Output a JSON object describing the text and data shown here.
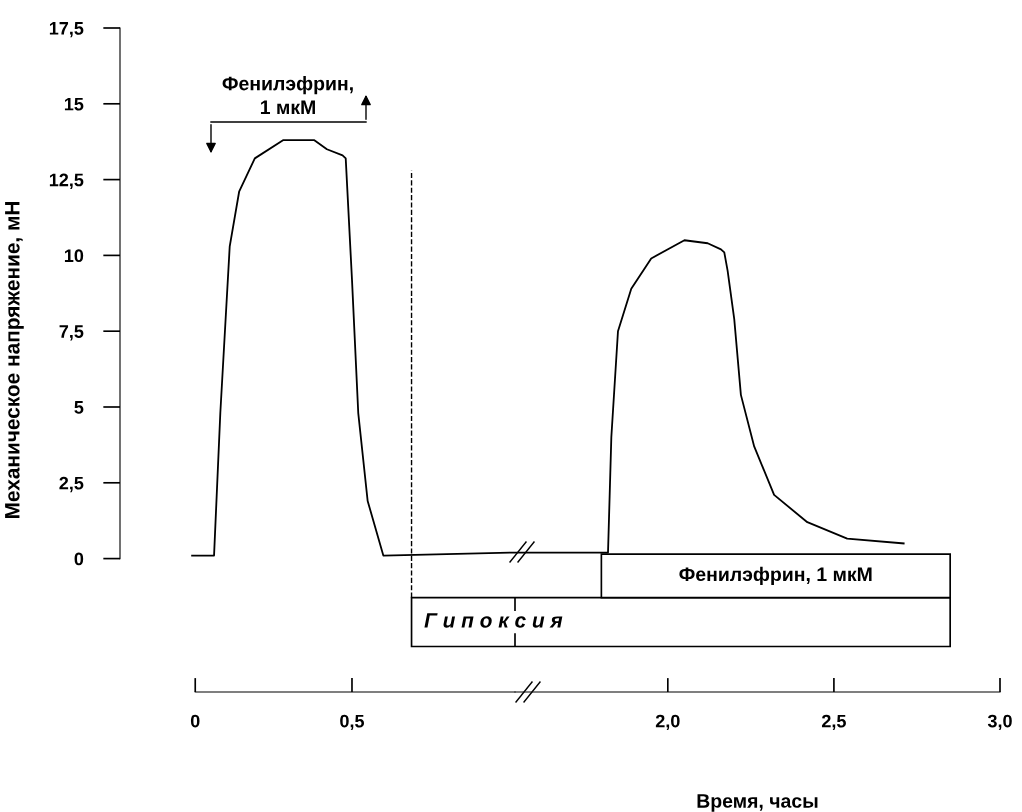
{
  "chart_data": [
    {
      "type": "line",
      "ylabel": "Механическое напряжение, мН",
      "xlim": [
        -0.24,
        1.02
      ],
      "xticks": [
        0,
        {
          "value": 0.5,
          "label": "0,5"
        }
      ],
      "ylim": [
        -4.4,
        17.5
      ],
      "yticks": [
        0,
        {
          "value": 2.5,
          "label": "2,5"
        },
        5,
        {
          "value": 7.5,
          "label": "7,5"
        },
        10,
        {
          "value": 12.5,
          "label": "12,5"
        },
        15,
        {
          "value": 17.5,
          "label": "17,5"
        }
      ],
      "series": [
        {
          "color": "#000000",
          "x": [
            -0.01,
            0.06,
            0.08,
            0.11,
            0.14,
            0.19,
            0.28,
            0.38,
            0.42,
            0.47,
            0.48,
            0.5,
            0.52,
            0.55,
            0.6,
            1.02
          ],
          "values": [
            0.1,
            0.1,
            4.8,
            10.3,
            12.1,
            13.2,
            13.8,
            13.8,
            13.5,
            13.3,
            13.2,
            9.2,
            4.8,
            1.9,
            0.1,
            0.2
          ]
        }
      ],
      "annotations": [
        "Фенилэфрин,\n1 мкМ"
      ],
      "ref_lines": [
        {
          "axis": "x",
          "value": 0.69,
          "line_style": "dashed",
          "color": "#000000"
        }
      ],
      "bands": [
        {
          "axis": "x",
          "from": 0.69,
          "to": 1.02,
          "label": "Г и п о к с и я",
          "color": "#ffffff"
        }
      ],
      "grid": false,
      "legend": false,
      "marker": "none",
      "line_style": "solid"
    },
    {
      "type": "line",
      "xlabel": "Время, часы",
      "xlim": [
        1.54,
        3.0
      ],
      "xticks": [
        {
          "value": 2.0,
          "label": "2,0"
        },
        {
          "value": 2.5,
          "label": "2,5"
        },
        {
          "value": 3.0,
          "label": "3,0"
        }
      ],
      "ylim": [
        -4.4,
        17.5
      ],
      "tick_labels": "x",
      "series": [
        {
          "color": "#000000",
          "x": [
            1.54,
            1.82,
            1.83,
            1.85,
            1.89,
            1.95,
            2.05,
            2.12,
            2.16,
            2.17,
            2.18,
            2.2,
            2.22,
            2.26,
            2.32,
            2.42,
            2.54,
            2.71
          ],
          "values": [
            0.2,
            0.2,
            4.0,
            7.5,
            8.9,
            9.9,
            10.5,
            10.4,
            10.2,
            10.1,
            9.5,
            7.9,
            5.4,
            3.7,
            2.1,
            1.2,
            0.66,
            0.5
          ]
        }
      ],
      "bands": [
        {
          "axis": "x",
          "from": 1.54,
          "to": 2.85,
          "color": "#ffffff"
        },
        {
          "axis": "x",
          "from": 1.8,
          "to": 2.85,
          "label": "Фенилэфрин, 1 мкМ",
          "color": "#ffffff"
        }
      ],
      "grid": false,
      "legend": false,
      "marker": "none",
      "line_style": "solid"
    }
  ]
}
